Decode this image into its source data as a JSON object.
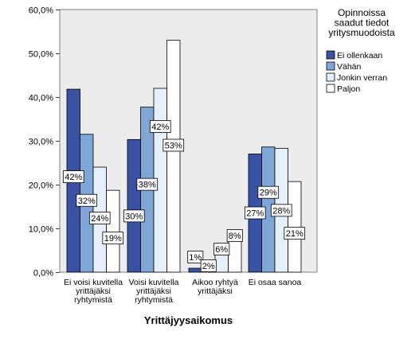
{
  "chart_data": {
    "type": "bar",
    "xlabel": "Yrittäjyysaikomus",
    "ylabel": "",
    "ylim": [
      0,
      60
    ],
    "yticks": [
      "0,0%",
      "10,0%",
      "20,0%",
      "30,0%",
      "40,0%",
      "50,0%",
      "60,0%"
    ],
    "ytick_values": [
      0,
      10,
      20,
      30,
      40,
      50,
      60
    ],
    "grid": false,
    "categories": [
      [
        "Ei voisi kuvitella",
        "yrittäjäksi",
        "ryhtymistä"
      ],
      [
        "Voisi kuvitella",
        "yrittäjäksi",
        "ryhtymistä"
      ],
      [
        "Aikoo ryhtyä",
        "yrittäjäksi"
      ],
      [
        "Ei osaa sanoa"
      ]
    ],
    "legend": {
      "title": [
        "Opinnoissa",
        "saadut tiedot",
        "yritysmuodoista"
      ],
      "position": "right"
    },
    "series": [
      {
        "name": "Ei ollenkaan",
        "color": "#3a52a3",
        "values": [
          41.8,
          30.3,
          0.9,
          27.0
        ],
        "labels": [
          "42%",
          "30%",
          "1%",
          "27%"
        ]
      },
      {
        "name": "Vähän",
        "color": "#7ea6d6",
        "values": [
          31.5,
          37.7,
          1.5,
          28.6
        ],
        "labels": [
          "32%",
          "38%",
          "2%",
          "29%"
        ]
      },
      {
        "name": "Jonkin verran",
        "color": "#e5f0fb",
        "values": [
          24.0,
          42.0,
          5.7,
          28.3
        ],
        "labels": [
          "24%",
          "42%",
          "6%",
          "28%"
        ]
      },
      {
        "name": "Paljon",
        "color": "#ffffff",
        "values": [
          18.7,
          53.0,
          8.0,
          20.7
        ],
        "labels": [
          "19%",
          "53%",
          "8%",
          "21%"
        ]
      }
    ]
  }
}
